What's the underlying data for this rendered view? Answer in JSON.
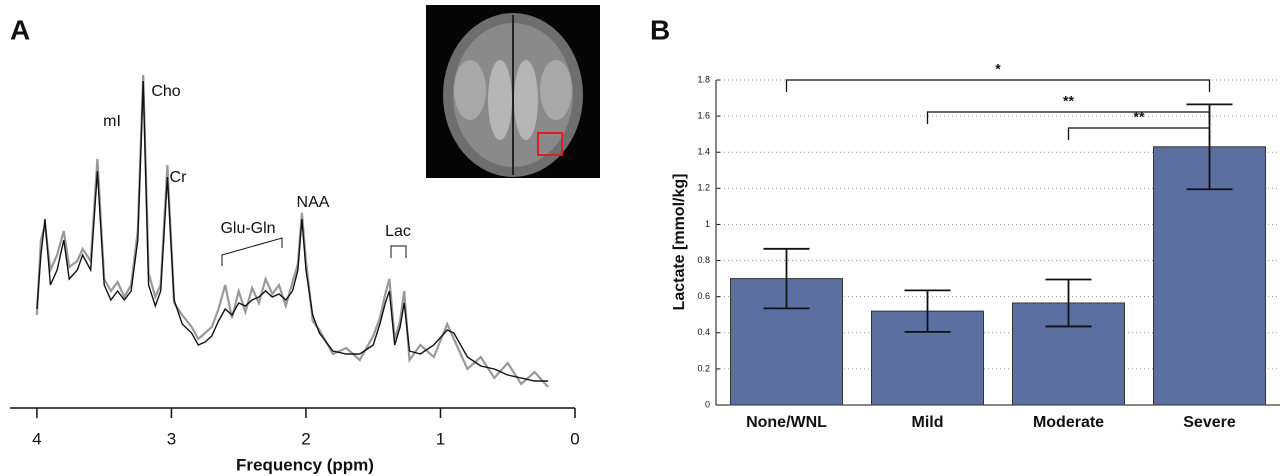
{
  "chart_data": [
    {
      "type": "line",
      "panel": "A",
      "xlabel": "Frequency (ppm)",
      "xlim": [
        4.2,
        0
      ],
      "xticks": [
        4,
        3,
        2,
        1,
        0
      ],
      "ylim": [
        0,
        110
      ],
      "annotations": [
        "mI",
        "Cho",
        "Cr",
        "Glu-Gln",
        "NAA",
        "Lac"
      ],
      "x": [
        4.0,
        3.97,
        3.94,
        3.9,
        3.85,
        3.8,
        3.76,
        3.7,
        3.66,
        3.6,
        3.55,
        3.5,
        3.45,
        3.4,
        3.35,
        3.3,
        3.25,
        3.21,
        3.17,
        3.12,
        3.08,
        3.03,
        2.98,
        2.92,
        2.85,
        2.8,
        2.75,
        2.7,
        2.65,
        2.6,
        2.55,
        2.5,
        2.45,
        2.4,
        2.35,
        2.3,
        2.25,
        2.2,
        2.15,
        2.1,
        2.06,
        2.03,
        2.0,
        1.95,
        1.9,
        1.8,
        1.7,
        1.6,
        1.5,
        1.45,
        1.41,
        1.38,
        1.34,
        1.3,
        1.27,
        1.23,
        1.15,
        1.05,
        0.95,
        0.9,
        0.8,
        0.7,
        0.6,
        0.5,
        0.4,
        0.3,
        0.2
      ],
      "series": [
        {
          "color": "#999999",
          "values": [
            30,
            55,
            60,
            45,
            50,
            58,
            46,
            48,
            52,
            48,
            82,
            42,
            38,
            41,
            36,
            40,
            58,
            110,
            44,
            36,
            40,
            80,
            34,
            30,
            26,
            22,
            24,
            26,
            32,
            40,
            29,
            38,
            31,
            39,
            34,
            42,
            37,
            40,
            33,
            41,
            47,
            64,
            48,
            28,
            25,
            17,
            19,
            15,
            23,
            29,
            37,
            42,
            22,
            28,
            38,
            15,
            20,
            16,
            27,
            22,
            12,
            16,
            9,
            14,
            7,
            11,
            6
          ]
        },
        {
          "color": "#111111",
          "values": [
            32,
            50,
            62,
            40,
            45,
            55,
            42,
            45,
            50,
            45,
            78,
            40,
            35,
            38,
            35,
            38,
            55,
            108,
            40,
            33,
            38,
            76,
            35,
            27,
            24,
            20,
            21,
            23,
            28,
            32,
            30,
            34,
            33,
            35,
            36,
            38,
            36,
            37,
            35,
            38,
            45,
            62,
            45,
            30,
            24,
            18,
            17,
            17,
            20,
            27,
            34,
            38,
            20,
            26,
            34,
            18,
            17,
            20,
            25,
            24,
            16,
            13,
            12,
            10,
            9,
            8,
            8
          ]
        }
      ]
    },
    {
      "type": "bar",
      "panel": "B",
      "ylabel": "Lactate [mmol/kg]",
      "categories": [
        "None/WNL",
        "Mild",
        "Moderate",
        "Severe"
      ],
      "values": [
        0.7,
        0.52,
        0.565,
        1.43
      ],
      "errors": [
        0.165,
        0.115,
        0.13,
        0.235
      ],
      "color": "#5b6fa0",
      "ylim": [
        0,
        1.8
      ],
      "yticks": [
        0,
        0.2,
        0.4,
        0.6,
        0.8,
        1,
        1.2,
        1.4,
        1.6,
        1.8
      ],
      "grid": true,
      "comparisons": [
        {
          "from": 0,
          "to": 3,
          "label": "*"
        },
        {
          "from": 1,
          "to": 3,
          "label": "**"
        },
        {
          "from": 2,
          "to": 3,
          "label": "**"
        }
      ]
    }
  ]
}
